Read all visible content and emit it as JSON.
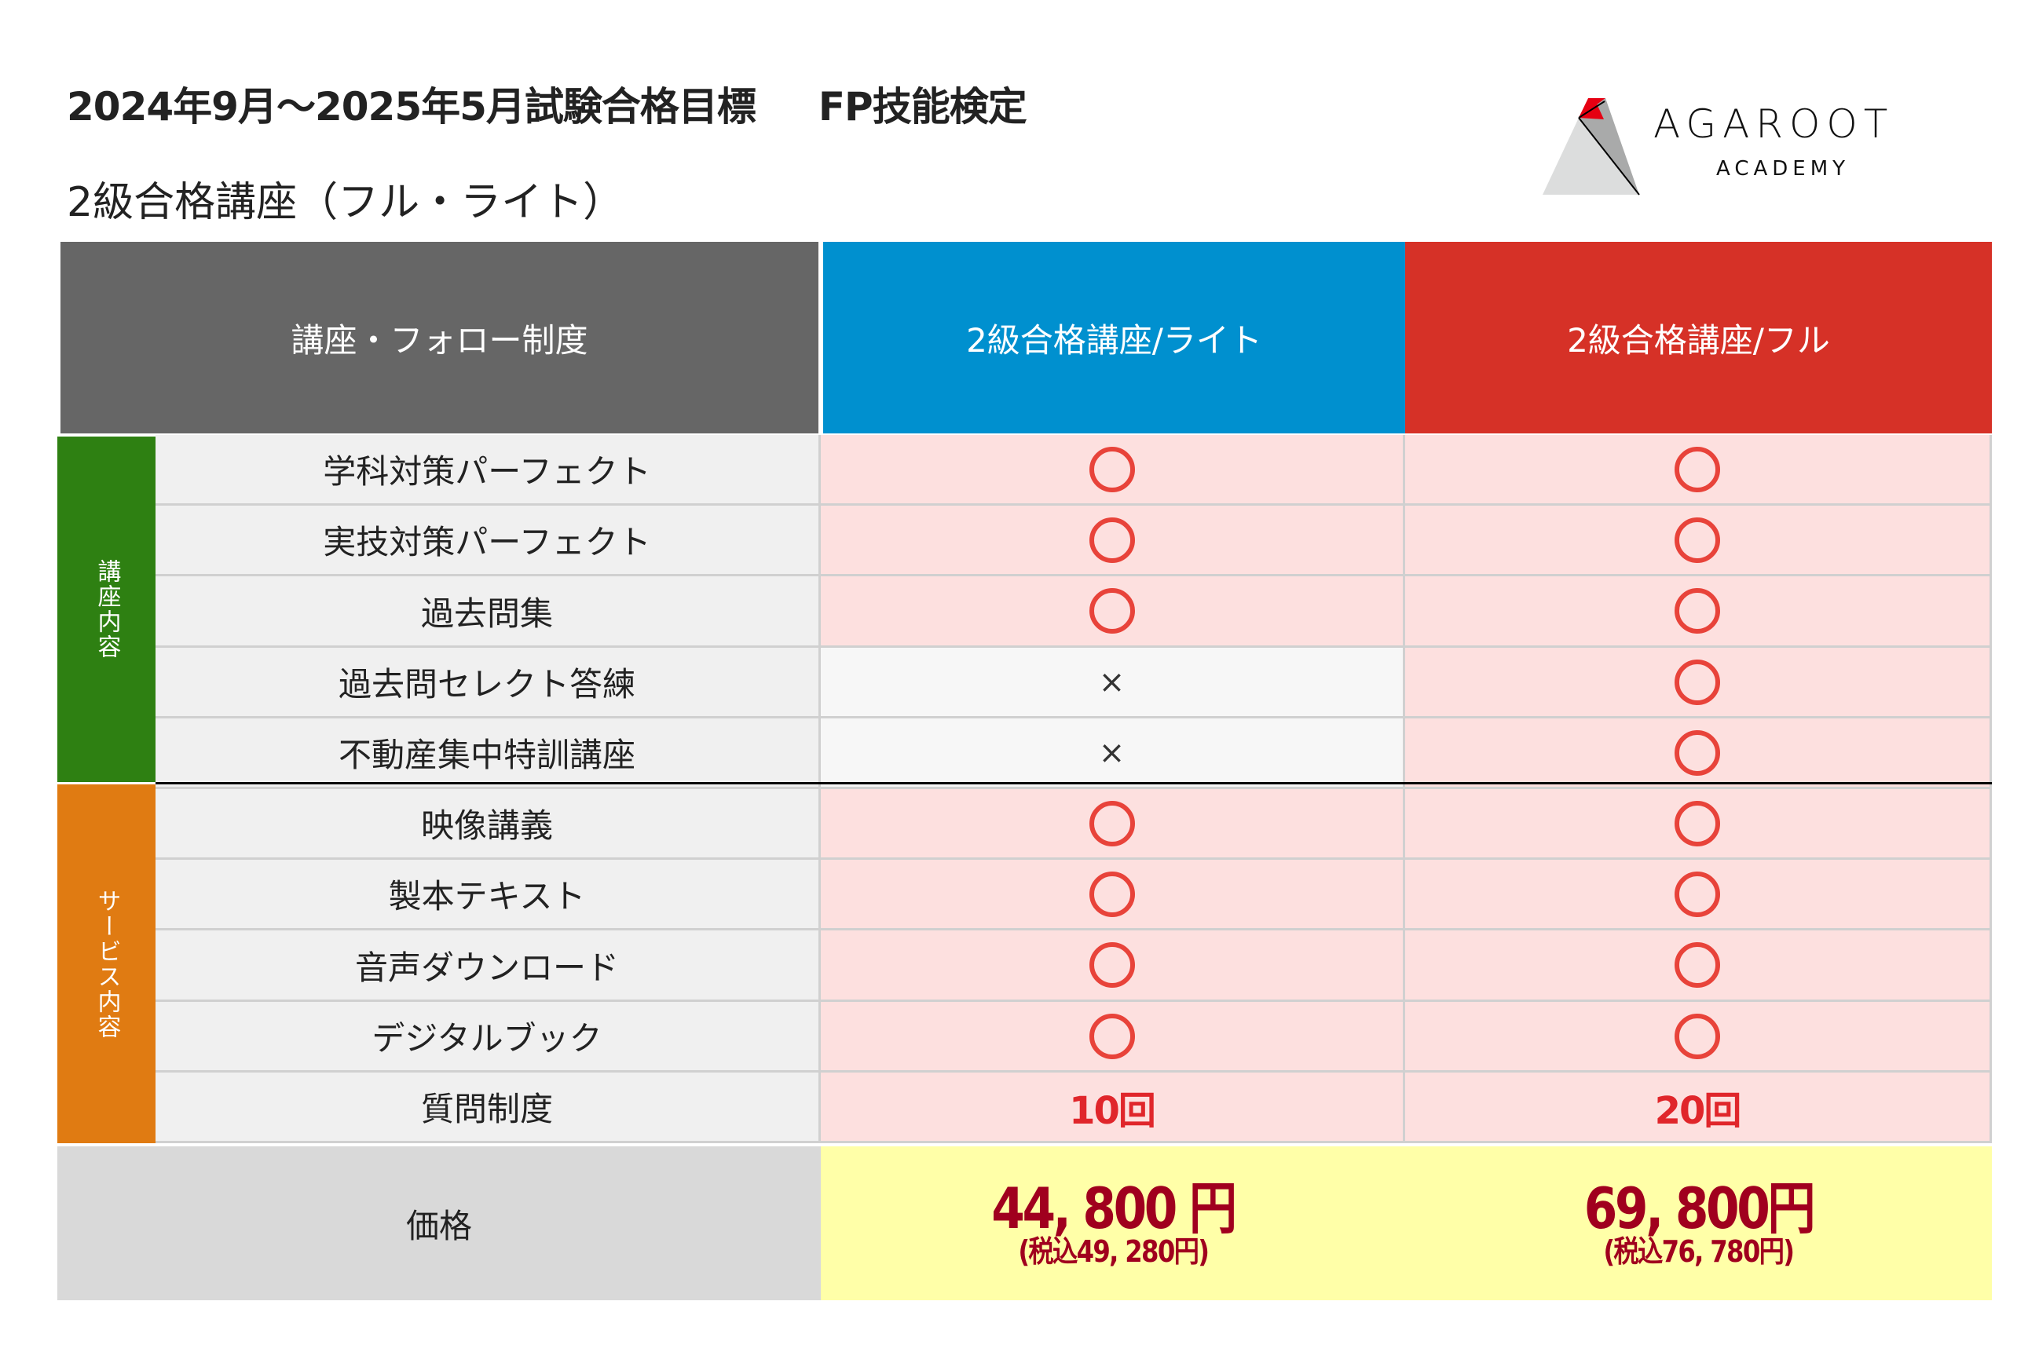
{
  "header": {
    "title": "2024年9月〜2025年5月試験合格目標",
    "exam": "FP技能検定",
    "subtitle": "2級合格講座（フル・ライト）"
  },
  "logo": {
    "brand": "AGAROOT",
    "sub": "ACADEMY"
  },
  "table": {
    "col_header_feature": "講座・フォロー制度",
    "col_header_lite": "2級合格講座/ライト",
    "col_header_full": "2級合格講座/フル",
    "groups": [
      {
        "label": "講座内容",
        "color": "#2e8012"
      },
      {
        "label": "サービス内容",
        "color": "#e07b12"
      }
    ],
    "rows": [
      {
        "name": "学科対策パーフェクト",
        "lite": "○",
        "full": "○"
      },
      {
        "name": "実技対策パーフェクト",
        "lite": "○",
        "full": "○"
      },
      {
        "name": "過去問集",
        "lite": "○",
        "full": "○"
      },
      {
        "name": "過去問セレクト答練",
        "lite": "×",
        "full": "○"
      },
      {
        "name": "不動産集中特訓講座",
        "lite": "×",
        "full": "○"
      },
      {
        "name": "映像講義",
        "lite": "○",
        "full": "○"
      },
      {
        "name": "製本テキスト",
        "lite": "○",
        "full": "○"
      },
      {
        "name": "音声ダウンロード",
        "lite": "○",
        "full": "○"
      },
      {
        "name": "デジタルブック",
        "lite": "○",
        "full": "○"
      },
      {
        "name": "質問制度",
        "lite": "10回",
        "full": "20回"
      }
    ],
    "price_label": "価格",
    "price_lite": "44, 800 円",
    "price_lite_tax": "(税込49, 280円)",
    "price_full": "69, 800円",
    "price_full_tax": "(税込76, 780円)"
  },
  "colors": {
    "header_gray": "#666666",
    "lite": "#0090cf",
    "full": "#d63127",
    "price_text": "#a0001e",
    "circle": "#e8433a"
  }
}
